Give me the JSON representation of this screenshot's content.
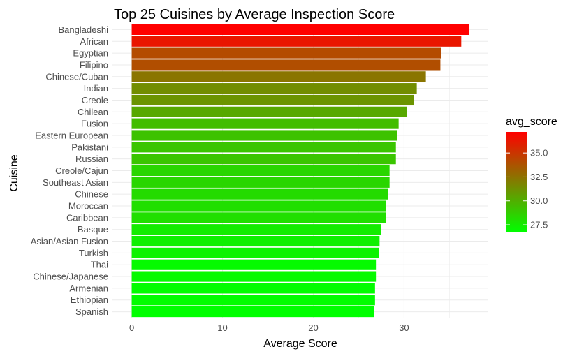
{
  "chart_data": {
    "type": "bar",
    "orientation": "horizontal",
    "title": "Top 25 Cuisines by Average Inspection Score",
    "xlabel": "Average Score",
    "ylabel": "Cuisine",
    "xlim": [
      -2.2,
      39.2
    ],
    "xticks": [
      0,
      10,
      20,
      30
    ],
    "grid": true,
    "categories": [
      "Bangladeshi",
      "African",
      "Egyptian",
      "Filipino",
      "Chinese/Cuban",
      "Indian",
      "Creole",
      "Chilean",
      "Fusion",
      "Eastern European",
      "Pakistani",
      "Russian",
      "Creole/Cajun",
      "Southeast Asian",
      "Chinese",
      "Moroccan",
      "Caribbean",
      "Basque",
      "Asian/Asian Fusion",
      "Turkish",
      "Thai",
      "Chinese/Japanese",
      "Armenian",
      "Ethiopian",
      "Spanish"
    ],
    "values": [
      37.2,
      36.3,
      34.1,
      34.0,
      32.4,
      31.4,
      31.1,
      30.3,
      29.4,
      29.2,
      29.1,
      29.1,
      28.4,
      28.4,
      28.2,
      28.0,
      28.0,
      27.5,
      27.3,
      27.2,
      26.9,
      26.9,
      26.8,
      26.8,
      26.7
    ],
    "legend": {
      "title": "avg_score",
      "placement": "right",
      "low_color": "#00ff00",
      "high_color": "#ff0000",
      "range": [
        26.7,
        37.2
      ],
      "ticks": [
        27.5,
        30.0,
        32.5,
        35.0
      ],
      "tick_labels": [
        "27.5",
        "30.0",
        "32.5",
        "35.0"
      ]
    }
  }
}
